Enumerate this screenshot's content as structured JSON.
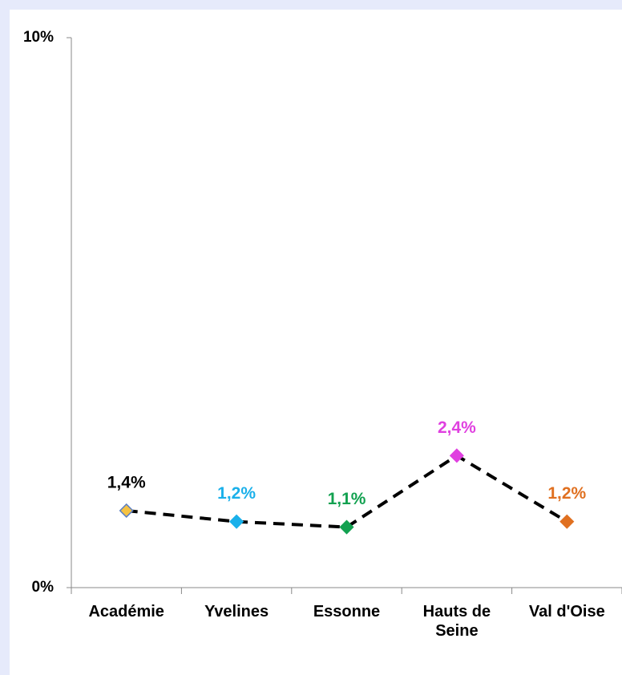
{
  "chart_data": {
    "type": "line",
    "categories": [
      "Académie",
      "Yvelines",
      "Essonne",
      "Hauts de Seine",
      "Val d'Oise"
    ],
    "values": [
      1.4,
      1.2,
      1.1,
      2.4,
      1.2
    ],
    "value_labels": [
      "1,4%",
      "1,2%",
      "1,1%",
      "2,4%",
      "1,2%"
    ],
    "line_color": "#000000",
    "marker_colors": [
      "#f5c242",
      "#1ab0ea",
      "#12a150",
      "#e040e0",
      "#e07020"
    ],
    "label_colors": [
      "#000000",
      "#1ab0ea",
      "#12a150",
      "#e040e0",
      "#e07020"
    ],
    "ylim": [
      0,
      10
    ],
    "yticks": [
      {
        "value": 0,
        "label": "0%"
      },
      {
        "value": 10,
        "label": "10%"
      }
    ],
    "grid": false
  }
}
